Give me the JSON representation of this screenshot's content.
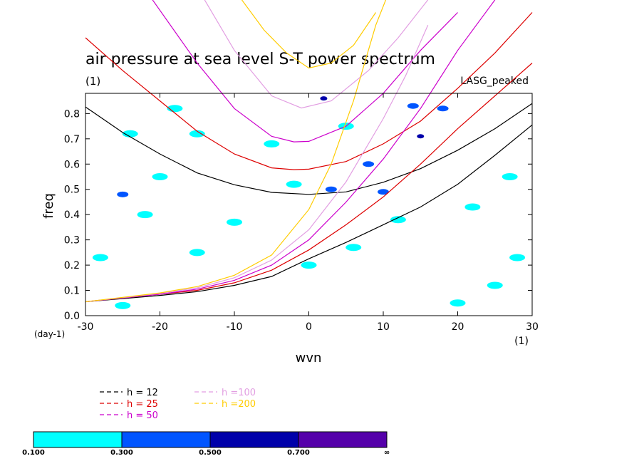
{
  "chart_data": {
    "type": "contour",
    "title": "air pressure at sea level S-T power spectrum",
    "subtitle": "(1)",
    "model": "LASG_peaked",
    "xlabel": "wvn",
    "x_units": "(1)",
    "ylabel": "freq",
    "y_units": "(day-1)",
    "xlim": [
      -30,
      30
    ],
    "ylim": [
      0.0,
      0.88
    ],
    "x_ticks": [
      "-30",
      "-20",
      "-10",
      "0",
      "10",
      "20",
      "30"
    ],
    "y_ticks": [
      "0.0",
      "0.1",
      "0.2",
      "0.3",
      "0.4",
      "0.5",
      "0.6",
      "0.7",
      "0.8"
    ],
    "dispersion_curves": [
      {
        "name": "h = 12",
        "color": "#000000",
        "upper": [
          [
            -30,
            0.826
          ],
          [
            -25,
            0.725
          ],
          [
            -20,
            0.64
          ],
          [
            -15,
            0.565
          ],
          [
            -10,
            0.518
          ],
          [
            -5,
            0.488
          ],
          [
            0,
            0.48
          ],
          [
            5,
            0.49
          ],
          [
            10,
            0.528
          ],
          [
            15,
            0.582
          ],
          [
            20,
            0.655
          ],
          [
            25,
            0.74
          ],
          [
            30,
            0.84
          ]
        ],
        "lower": [
          [
            -30,
            0.055
          ],
          [
            -20,
            0.08
          ],
          [
            -15,
            0.095
          ],
          [
            -10,
            0.12
          ],
          [
            -5,
            0.155
          ],
          [
            0,
            0.225
          ],
          [
            5,
            0.29
          ],
          [
            10,
            0.36
          ],
          [
            15,
            0.43
          ],
          [
            20,
            0.52
          ],
          [
            25,
            0.635
          ],
          [
            30,
            0.755
          ]
        ]
      },
      {
        "name": "h = 25",
        "color": "#dd0000",
        "upper": [
          [
            -30,
            1.1
          ],
          [
            -25,
            0.97
          ],
          [
            -20,
            0.85
          ],
          [
            -15,
            0.73
          ],
          [
            -10,
            0.64
          ],
          [
            -5,
            0.585
          ],
          [
            -2,
            0.578
          ],
          [
            0,
            0.58
          ],
          [
            5,
            0.61
          ],
          [
            10,
            0.68
          ],
          [
            15,
            0.77
          ],
          [
            20,
            0.9
          ],
          [
            25,
            1.04
          ],
          [
            30,
            1.2
          ]
        ],
        "lower": [
          [
            -30,
            0.055
          ],
          [
            -20,
            0.085
          ],
          [
            -15,
            0.1
          ],
          [
            -10,
            0.13
          ],
          [
            -5,
            0.18
          ],
          [
            0,
            0.26
          ],
          [
            5,
            0.36
          ],
          [
            10,
            0.47
          ],
          [
            15,
            0.6
          ],
          [
            20,
            0.74
          ],
          [
            25,
            0.87
          ],
          [
            30,
            1.0
          ]
        ]
      },
      {
        "name": "h = 50",
        "color": "#cc00cc",
        "upper": [
          [
            -21,
            1.25
          ],
          [
            -15,
            1.0
          ],
          [
            -10,
            0.82
          ],
          [
            -5,
            0.71
          ],
          [
            -2,
            0.688
          ],
          [
            0,
            0.69
          ],
          [
            5,
            0.75
          ],
          [
            10,
            0.88
          ],
          [
            15,
            1.05
          ],
          [
            20,
            1.2
          ]
        ],
        "lower": [
          [
            -30,
            0.055
          ],
          [
            -20,
            0.085
          ],
          [
            -15,
            0.105
          ],
          [
            -10,
            0.14
          ],
          [
            -5,
            0.2
          ],
          [
            0,
            0.3
          ],
          [
            5,
            0.45
          ],
          [
            10,
            0.62
          ],
          [
            15,
            0.82
          ],
          [
            20,
            1.05
          ],
          [
            25,
            1.25
          ]
        ]
      },
      {
        "name": "h =100",
        "color": "#e29ee2",
        "upper": [
          [
            -14,
            1.25
          ],
          [
            -10,
            1.05
          ],
          [
            -5,
            0.87
          ],
          [
            -1,
            0.822
          ],
          [
            3,
            0.85
          ],
          [
            8,
            0.97
          ],
          [
            12,
            1.1
          ],
          [
            16,
            1.25
          ]
        ],
        "lower": [
          [
            -30,
            0.055
          ],
          [
            -20,
            0.088
          ],
          [
            -15,
            0.11
          ],
          [
            -10,
            0.15
          ],
          [
            -5,
            0.22
          ],
          [
            0,
            0.34
          ],
          [
            5,
            0.53
          ],
          [
            10,
            0.78
          ],
          [
            13,
            0.95
          ],
          [
            16,
            1.15
          ]
        ]
      },
      {
        "name": "h =200",
        "color": "#ffcc00",
        "upper": [
          [
            -9,
            1.25
          ],
          [
            -6,
            1.13
          ],
          [
            -3,
            1.04
          ],
          [
            0,
            0.98
          ],
          [
            3,
            1.0
          ],
          [
            6,
            1.07
          ],
          [
            9,
            1.2
          ]
        ],
        "lower": [
          [
            -30,
            0.055
          ],
          [
            -20,
            0.09
          ],
          [
            -15,
            0.115
          ],
          [
            -10,
            0.16
          ],
          [
            -5,
            0.24
          ],
          [
            0,
            0.42
          ],
          [
            3,
            0.6
          ],
          [
            6,
            0.85
          ],
          [
            9,
            1.15
          ],
          [
            11,
            1.3
          ]
        ]
      }
    ],
    "colorbar": {
      "levels": [
        "0.100",
        "0.300",
        "0.500",
        "0.700",
        "∞"
      ],
      "colors": [
        "#00ffff",
        "#0055ff",
        "#0000aa",
        "#5500aa"
      ]
    },
    "contour_patches": [
      {
        "x": 2,
        "y": 0.86,
        "level": 2
      },
      {
        "x": 14,
        "y": 0.83,
        "level": 1
      },
      {
        "x": 18,
        "y": 0.82,
        "level": 1
      },
      {
        "x": 15,
        "y": 0.71,
        "level": 2
      },
      {
        "x": 8,
        "y": 0.6,
        "level": 1
      },
      {
        "x": 10,
        "y": 0.49,
        "level": 1
      },
      {
        "x": 3,
        "y": 0.5,
        "level": 1
      },
      {
        "x": -25,
        "y": 0.48,
        "level": 1
      },
      {
        "x": -24,
        "y": 0.72,
        "level": 0
      },
      {
        "x": -15,
        "y": 0.72,
        "level": 0
      },
      {
        "x": -20,
        "y": 0.55,
        "level": 0
      },
      {
        "x": -22,
        "y": 0.4,
        "level": 0
      },
      {
        "x": -10,
        "y": 0.37,
        "level": 0
      },
      {
        "x": -15,
        "y": 0.25,
        "level": 0
      },
      {
        "x": -25,
        "y": 0.04,
        "level": 0
      },
      {
        "x": -28,
        "y": 0.23,
        "level": 0
      },
      {
        "x": 0,
        "y": 0.2,
        "level": 0
      },
      {
        "x": 5,
        "y": 0.75,
        "level": 0
      },
      {
        "x": 22,
        "y": 0.43,
        "level": 0
      },
      {
        "x": 27,
        "y": 0.55,
        "level": 0
      },
      {
        "x": 28,
        "y": 0.23,
        "level": 0
      },
      {
        "x": 25,
        "y": 0.12,
        "level": 0
      },
      {
        "x": -5,
        "y": 0.68,
        "level": 0
      },
      {
        "x": 12,
        "y": 0.38,
        "level": 0
      },
      {
        "x": 20,
        "y": 0.05,
        "level": 0
      },
      {
        "x": -18,
        "y": 0.82,
        "level": 0
      },
      {
        "x": 6,
        "y": 0.27,
        "level": 0
      },
      {
        "x": -2,
        "y": 0.52,
        "level": 0
      }
    ]
  }
}
